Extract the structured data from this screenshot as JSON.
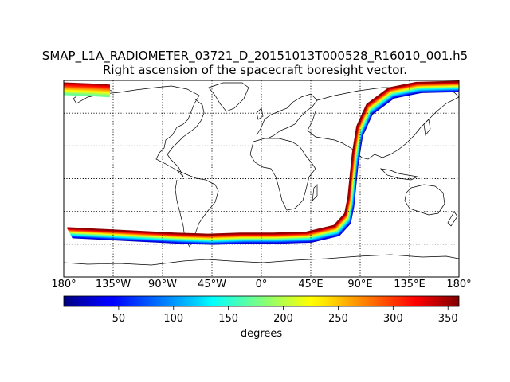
{
  "figure": {
    "title_line1": "SMAP_L1A_RADIOMETER_03721_D_20151013T000528_R16010_001.h5",
    "title_line2": "Right ascension of the spacecraft boresight vector."
  },
  "map": {
    "projection": "cylindrical",
    "lon_range": [
      -180,
      180
    ],
    "lat_range": [
      -90,
      90
    ],
    "graticule": "dotted",
    "lon_tick_labels": [
      "180°",
      "135°W",
      "90°W",
      "45°W",
      "0°",
      "45°E",
      "90°E",
      "135°E",
      "180°"
    ],
    "lon_tick_values": [
      -180,
      -135,
      -90,
      -45,
      0,
      45,
      90,
      135,
      180
    ],
    "lat_gridlines": [
      -60,
      -30,
      0,
      30,
      60
    ]
  },
  "colorbar": {
    "colormap": "jet",
    "range": [
      0,
      360
    ],
    "tick_labels": [
      "50",
      "100",
      "150",
      "200",
      "250",
      "300",
      "350"
    ],
    "tick_values": [
      50,
      100,
      150,
      200,
      250,
      300,
      350
    ],
    "label": "degrees"
  },
  "swath": {
    "description_values": "right ascension (degrees) varies across track from ~0 (blue, inner) to ~360 (red, outer)",
    "track_lonlat": [
      [
        -180,
        86
      ],
      [
        -155,
        85
      ],
      [
        -138,
        84
      ],
      [
        -178,
        -48
      ],
      [
        -80,
        -53
      ],
      [
        -50,
        -54
      ],
      [
        -20,
        -53
      ],
      [
        10,
        -53
      ],
      [
        40,
        -52
      ],
      [
        65,
        -46
      ],
      [
        75,
        -35
      ],
      [
        78,
        -20
      ],
      [
        80,
        0
      ],
      [
        82,
        20
      ],
      [
        86,
        45
      ],
      [
        95,
        65
      ],
      [
        115,
        80
      ],
      [
        140,
        85
      ],
      [
        180,
        86
      ]
    ]
  }
}
